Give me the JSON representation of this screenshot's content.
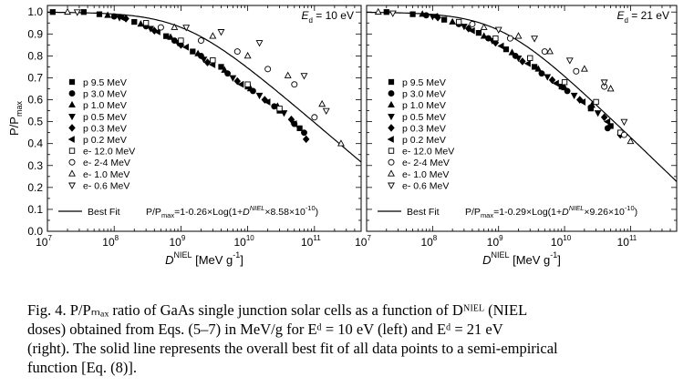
{
  "chart_data": [
    {
      "type": "scatter",
      "panel": "left",
      "annotation_ed": {
        "label": "E",
        "sub": "d",
        "value": " = 10 eV"
      },
      "xlabel": {
        "main": "D",
        "sup": "NIEL",
        "unit": " [MeV g",
        "unit_sup": "-1",
        "close": "]"
      },
      "ylabel": {
        "main": "P/P",
        "sub": "max"
      },
      "xscale": "log",
      "xlim": [
        10000000.0,
        500000000000.0
      ],
      "ylim": [
        0.0,
        1.03
      ],
      "xticks": [
        {
          "v": 10000000.0,
          "base": "10",
          "exp": "7"
        },
        {
          "v": 100000000.0,
          "base": "10",
          "exp": "8"
        },
        {
          "v": 1000000000.0,
          "base": "10",
          "exp": "9"
        },
        {
          "v": 10000000000.0,
          "base": "10",
          "exp": "10"
        },
        {
          "v": 100000000000.0,
          "base": "10",
          "exp": "11"
        }
      ],
      "yticks": [
        "0.0",
        "0.1",
        "0.2",
        "0.3",
        "0.4",
        "0.5",
        "0.6",
        "0.7",
        "0.8",
        "0.9",
        "1.0"
      ],
      "fit": {
        "a": 0.26,
        "k": 8.58e-10,
        "label": "Best Fit"
      },
      "equation": {
        "p1": "P/P",
        "sub": "max",
        "p2": "=1-0.26×Log(1+",
        "d": "D",
        "sup": "NIEL",
        "p3": "×8.58×10",
        "exp": "-10",
        "p4": ")"
      },
      "legend_placement": "left",
      "series": [
        {
          "name": "p 9.5 MeV",
          "marker": "square",
          "filled": true,
          "points": [
            [
              12000000.0,
              1.0
            ],
            [
              35000000.0,
              1.0
            ],
            [
              60000000.0,
              0.99
            ],
            [
              200000000.0,
              0.955
            ],
            [
              600000000.0,
              0.89
            ],
            [
              1500000000.0,
              0.82
            ],
            [
              4000000000.0,
              0.75
            ],
            [
              10000000000.0,
              0.66
            ],
            [
              30000000000.0,
              0.55
            ],
            [
              60000000000.0,
              0.47
            ]
          ]
        },
        {
          "name": "p 3.0 MeV",
          "marker": "circle",
          "filled": true,
          "points": [
            [
              100000000.0,
              0.98
            ],
            [
              300000000.0,
              0.935
            ],
            [
              800000000.0,
              0.87
            ],
            [
              2000000000.0,
              0.8
            ],
            [
              5000000000.0,
              0.72
            ],
            [
              12000000000.0,
              0.64
            ],
            [
              25000000000.0,
              0.57
            ],
            [
              50000000000.0,
              0.49
            ],
            [
              70000000000.0,
              0.45
            ]
          ]
        },
        {
          "name": "p 1.0 MeV",
          "marker": "triangle-up",
          "filled": true,
          "points": [
            [
              80000000.0,
              0.985
            ],
            [
              250000000.0,
              0.945
            ],
            [
              700000000.0,
              0.885
            ],
            [
              1800000000.0,
              0.81
            ],
            [
              4500000000.0,
              0.735
            ],
            [
              11000000000.0,
              0.65
            ],
            [
              28000000000.0,
              0.57
            ]
          ]
        },
        {
          "name": "p 0.5 MeV",
          "marker": "triangle-down",
          "filled": true,
          "points": [
            [
              120000000.0,
              0.975
            ],
            [
              350000000.0,
              0.925
            ],
            [
              900000000.0,
              0.86
            ],
            [
              2200000000.0,
              0.785
            ],
            [
              6000000000.0,
              0.7
            ],
            [
              15000000000.0,
              0.62
            ],
            [
              35000000000.0,
              0.54
            ]
          ]
        },
        {
          "name": "p 0.3 MeV",
          "marker": "diamond",
          "filled": true,
          "points": [
            [
              150000000.0,
              0.97
            ],
            [
              400000000.0,
              0.915
            ],
            [
              1000000000.0,
              0.85
            ],
            [
              2500000000.0,
              0.77
            ],
            [
              7000000000.0,
              0.685
            ],
            [
              18000000000.0,
              0.6
            ],
            [
              45000000000.0,
              0.51
            ],
            [
              75000000000.0,
              0.42
            ]
          ]
        },
        {
          "name": "p 0.2 MeV",
          "marker": "triangle-left",
          "filled": true,
          "points": [
            [
              130000000.0,
              0.975
            ],
            [
              450000000.0,
              0.91
            ],
            [
              1200000000.0,
              0.84
            ],
            [
              3000000000.0,
              0.76
            ],
            [
              8000000000.0,
              0.67
            ],
            [
              20000000000.0,
              0.59
            ],
            [
              50000000000.0,
              0.49
            ]
          ]
        },
        {
          "name": "e- 12.0 MeV",
          "marker": "square",
          "filled": false,
          "points": [
            [
              300000000.0,
              0.95
            ],
            [
              1000000000.0,
              0.87
            ],
            [
              3000000000.0,
              0.78
            ],
            [
              10000000000.0,
              0.67
            ],
            [
              30000000000.0,
              0.56
            ]
          ]
        },
        {
          "name": "e- 2-4 MeV",
          "marker": "circle",
          "filled": false,
          "points": [
            [
              500000000.0,
              0.93
            ],
            [
              2000000000.0,
              0.87
            ],
            [
              7000000000.0,
              0.82
            ],
            [
              20000000000.0,
              0.74
            ],
            [
              50000000000.0,
              0.67
            ],
            [
              100000000000.0,
              0.52
            ]
          ]
        },
        {
          "name": "e- 1.0 MeV",
          "marker": "triangle-up",
          "filled": false,
          "points": [
            [
              20000000.0,
              1.0
            ],
            [
              800000000.0,
              0.93
            ],
            [
              3000000000.0,
              0.89
            ],
            [
              10000000000.0,
              0.8
            ],
            [
              40000000000.0,
              0.71
            ],
            [
              130000000000.0,
              0.58
            ],
            [
              250000000000.0,
              0.4
            ]
          ]
        },
        {
          "name": "e- 0.6 MeV",
          "marker": "triangle-down",
          "filled": false,
          "points": [
            [
              28000000.0,
              1.0
            ],
            [
              1200000000.0,
              0.93
            ],
            [
              4000000000.0,
              0.91
            ],
            [
              15000000000.0,
              0.86
            ],
            [
              70000000000.0,
              0.71
            ],
            [
              150000000000.0,
              0.55
            ]
          ]
        }
      ]
    },
    {
      "type": "scatter",
      "panel": "right",
      "annotation_ed": {
        "label": "E",
        "sub": "d",
        "value": " = 21 eV"
      },
      "xlabel": {
        "main": "D",
        "sup": "NIEL",
        "unit": " [MeV g",
        "unit_sup": "-1",
        "close": "]"
      },
      "xscale": "log",
      "xlim": [
        10000000.0,
        500000000000.0
      ],
      "ylim": [
        0.0,
        1.03
      ],
      "xticks": [
        {
          "v": 10000000.0,
          "base": "10",
          "exp": "7"
        },
        {
          "v": 100000000.0,
          "base": "10",
          "exp": "8"
        },
        {
          "v": 1000000000.0,
          "base": "10",
          "exp": "9"
        },
        {
          "v": 10000000000.0,
          "base": "10",
          "exp": "10"
        },
        {
          "v": 100000000000.0,
          "base": "10",
          "exp": "11"
        }
      ],
      "fit": {
        "a": 0.29,
        "k": 9.26e-10,
        "label": "Best Fit"
      },
      "equation": {
        "p1": "P/P",
        "sub": "max",
        "p2": "=1-0.29×Log(1+",
        "d": "D",
        "sup": "NIEL",
        "p3": "×9.26×10",
        "exp": "-10",
        "p4": ")"
      },
      "legend_placement": "left",
      "series": [
        {
          "name": "p 9.5 MeV",
          "marker": "square",
          "filled": true,
          "points": [
            [
              20000000.0,
              1.0
            ],
            [
              50000000.0,
              0.99
            ],
            [
              150000000.0,
              0.965
            ],
            [
              500000000.0,
              0.905
            ],
            [
              1300000000.0,
              0.83
            ],
            [
              3500000000.0,
              0.75
            ],
            [
              9000000000.0,
              0.66
            ],
            [
              25000000000.0,
              0.56
            ],
            [
              50000000000.0,
              0.48
            ]
          ]
        },
        {
          "name": "p 3.0 MeV",
          "marker": "circle",
          "filled": true,
          "points": [
            [
              80000000.0,
              0.985
            ],
            [
              250000000.0,
              0.945
            ],
            [
              700000000.0,
              0.88
            ],
            [
              1800000000.0,
              0.8
            ],
            [
              4500000000.0,
              0.72
            ],
            [
              11000000000.0,
              0.64
            ],
            [
              25000000000.0,
              0.565
            ],
            [
              45000000000.0,
              0.47
            ]
          ]
        },
        {
          "name": "p 1.0 MeV",
          "marker": "triangle-up",
          "filled": true,
          "points": [
            [
              70000000.0,
              0.99
            ],
            [
              200000000.0,
              0.955
            ],
            [
              600000000.0,
              0.89
            ],
            [
              1600000000.0,
              0.815
            ],
            [
              4000000000.0,
              0.74
            ],
            [
              10000000000.0,
              0.655
            ],
            [
              26000000000.0,
              0.575
            ]
          ]
        },
        {
          "name": "p 0.5 MeV",
          "marker": "triangle-down",
          "filled": true,
          "points": [
            [
              100000000.0,
              0.98
            ],
            [
              300000000.0,
              0.935
            ],
            [
              800000000.0,
              0.87
            ],
            [
              2000000000.0,
              0.79
            ],
            [
              5500000000.0,
              0.705
            ],
            [
              14000000000.0,
              0.62
            ],
            [
              32000000000.0,
              0.54
            ]
          ]
        },
        {
          "name": "p 0.3 MeV",
          "marker": "diamond",
          "filled": true,
          "points": [
            [
              120000000.0,
              0.975
            ],
            [
              350000000.0,
              0.925
            ],
            [
              900000000.0,
              0.86
            ],
            [
              2300000000.0,
              0.775
            ],
            [
              6500000000.0,
              0.69
            ],
            [
              17000000000.0,
              0.6
            ],
            [
              40000000000.0,
              0.52
            ],
            [
              70000000000.0,
              0.44
            ]
          ]
        },
        {
          "name": "p 0.2 MeV",
          "marker": "triangle-left",
          "filled": true,
          "points": [
            [
              110000000.0,
              0.98
            ],
            [
              400000000.0,
              0.915
            ],
            [
              1100000000.0,
              0.845
            ],
            [
              2800000000.0,
              0.765
            ],
            [
              7500000000.0,
              0.675
            ],
            [
              19000000000.0,
              0.59
            ],
            [
              45000000000.0,
              0.5
            ]
          ]
        },
        {
          "name": "e- 12.0 MeV",
          "marker": "square",
          "filled": false,
          "points": [
            [
              250000000.0,
              0.955
            ],
            [
              900000000.0,
              0.88
            ],
            [
              3000000000.0,
              0.79
            ],
            [
              10000000000.0,
              0.68
            ],
            [
              30000000000.0,
              0.59
            ],
            [
              70000000000.0,
              0.45
            ]
          ]
        },
        {
          "name": "e- 2-4 MeV",
          "marker": "circle",
          "filled": false,
          "points": [
            [
              400000000.0,
              0.945
            ],
            [
              1500000000.0,
              0.88
            ],
            [
              5000000000.0,
              0.82
            ],
            [
              15000000000.0,
              0.73
            ],
            [
              40000000000.0,
              0.66
            ],
            [
              80000000000.0,
              0.44
            ]
          ]
        },
        {
          "name": "e- 1.0 MeV",
          "marker": "triangle-up",
          "filled": false,
          "points": [
            [
              15000000.0,
              1.0
            ],
            [
              600000000.0,
              0.93
            ],
            [
              2000000000.0,
              0.89
            ],
            [
              6000000000.0,
              0.82
            ],
            [
              20000000000.0,
              0.74
            ],
            [
              50000000000.0,
              0.65
            ],
            [
              100000000000.0,
              0.41
            ]
          ]
        },
        {
          "name": "e- 0.6 MeV",
          "marker": "triangle-down",
          "filled": false,
          "points": [
            [
              25000000.0,
              0.995
            ],
            [
              1000000000.0,
              0.92
            ],
            [
              3500000000.0,
              0.88
            ],
            [
              12000000000.0,
              0.78
            ],
            [
              40000000000.0,
              0.68
            ],
            [
              80000000000.0,
              0.5
            ]
          ]
        }
      ]
    }
  ],
  "caption": {
    "lines": [
      "Fig. 4.   P/Pₘₐₓ ratio of GaAs single junction solar cells as a function of Dᴺᴵᴱᴸ (NIEL",
      "doses) obtained from Eqs. (5–7) in MeV/g for Eᵈ = 10 eV (left) and Eᵈ = 21 eV",
      "(right). The solid line represents the overall best fit of all data points to a semi-empirical",
      "function [Eq. (8)]."
    ]
  }
}
